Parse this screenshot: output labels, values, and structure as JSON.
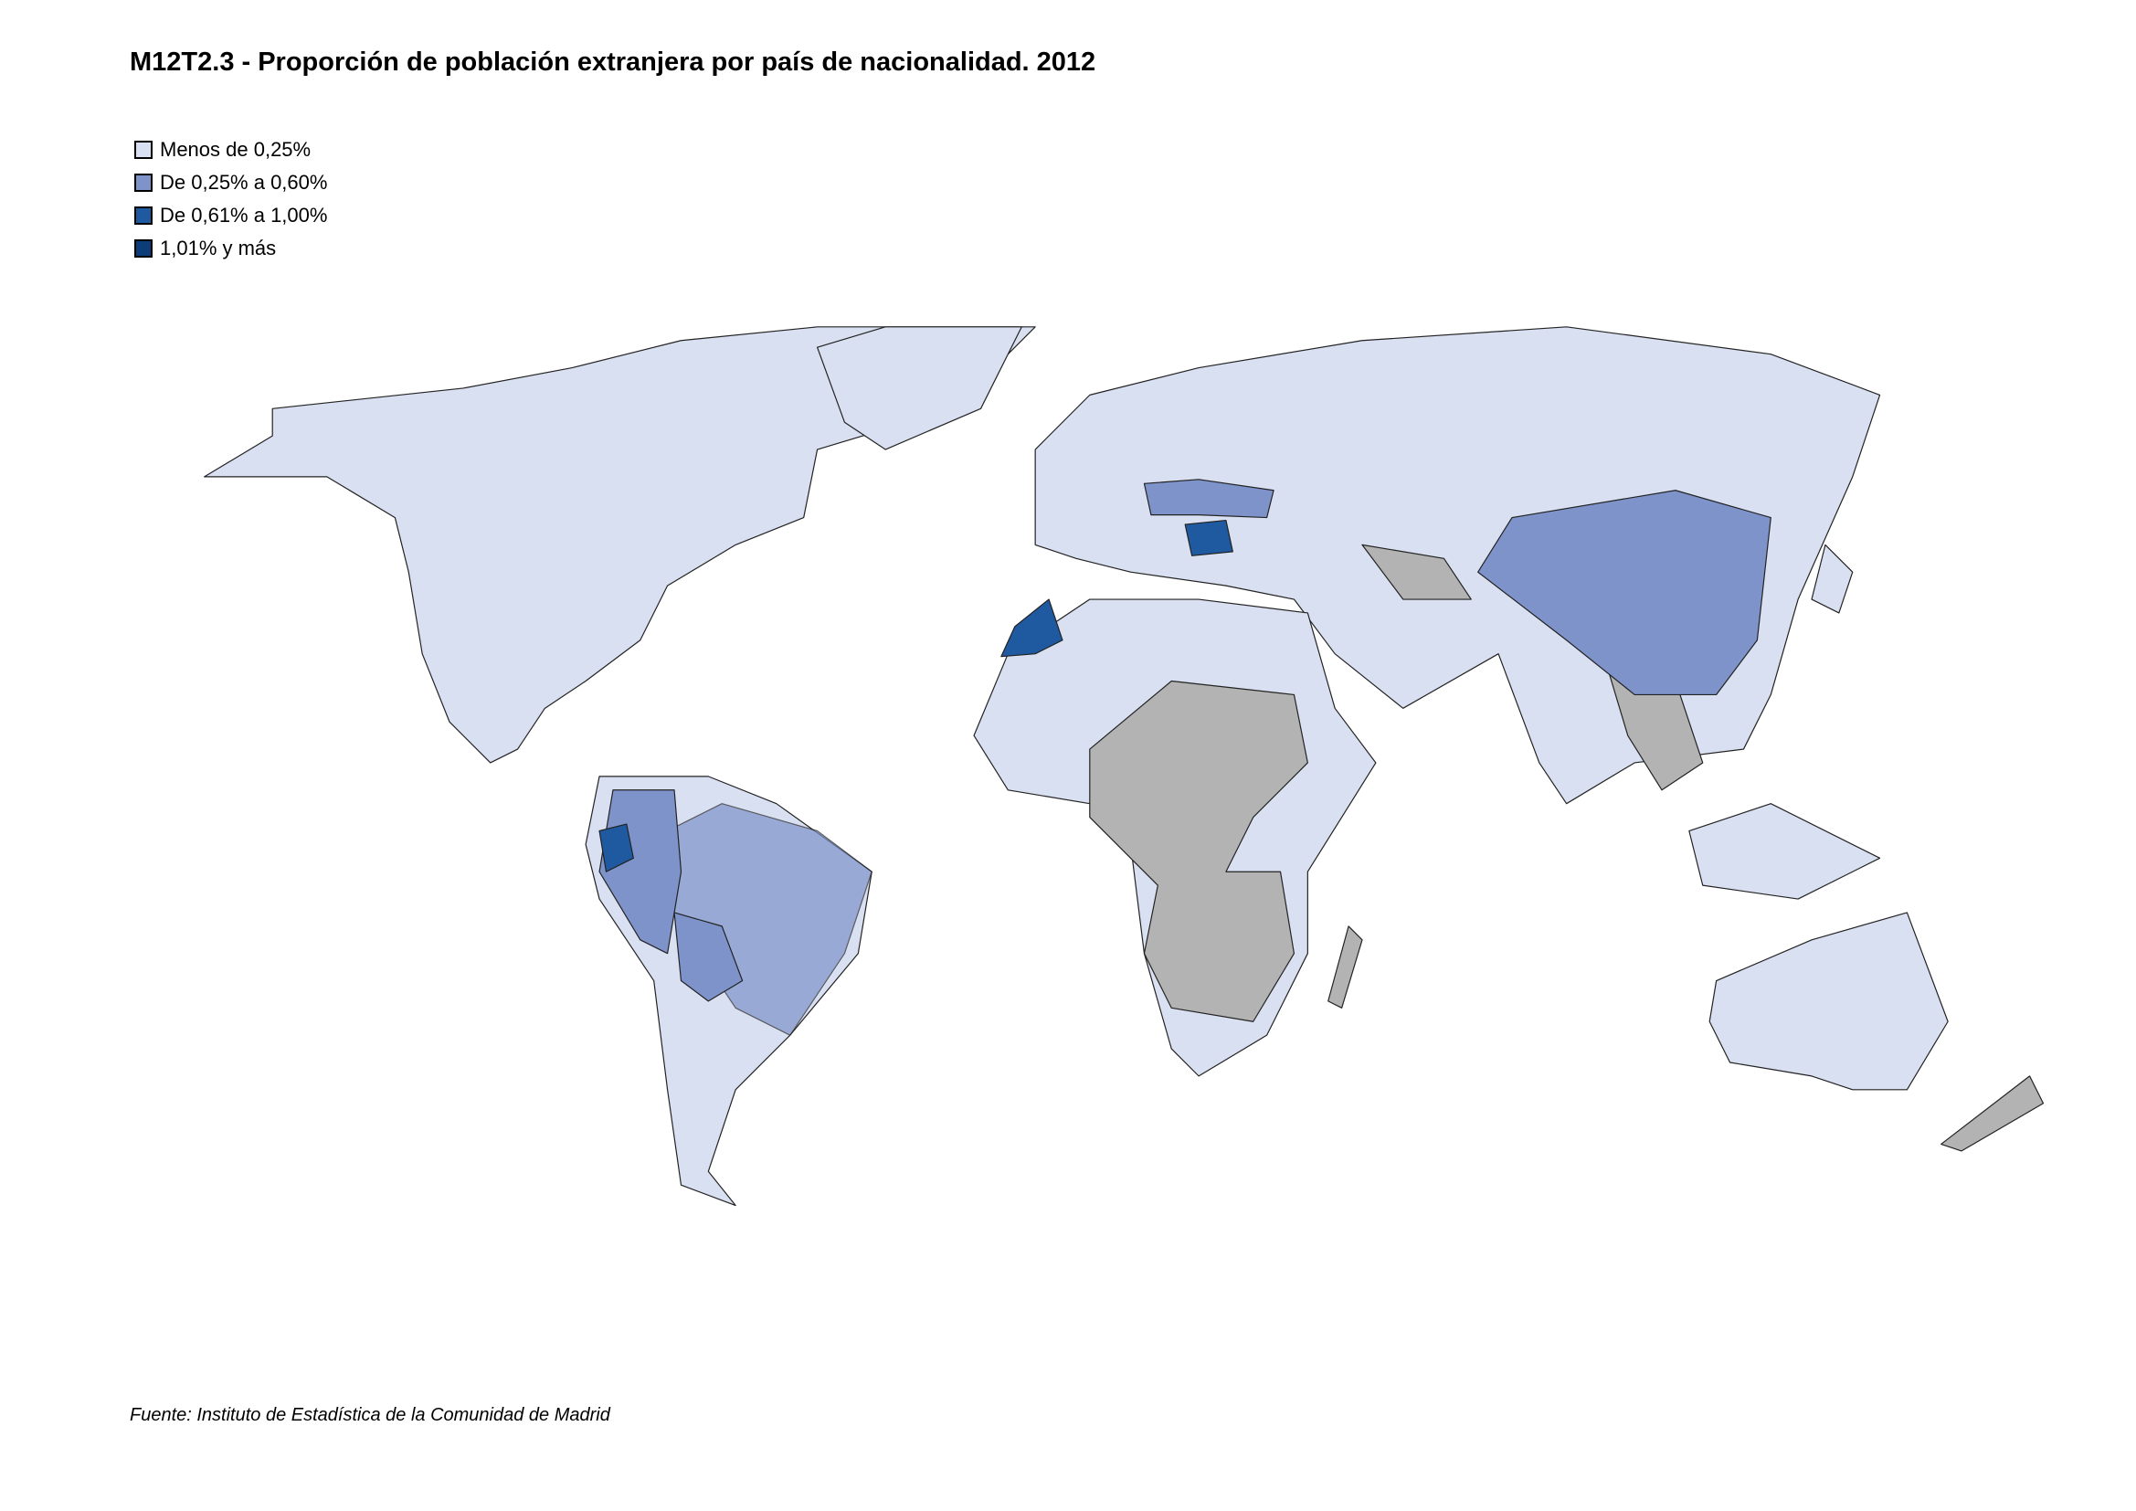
{
  "title": "M12T2.3 - Proporción de población extranjera por país de nacionalidad. 2012",
  "legend": [
    {
      "label": "Menos de 0,25%",
      "color": "#d9e0f1"
    },
    {
      "label": "De 0,25% a 0,60%",
      "color": "#7f93cb"
    },
    {
      "label": "De 0,61% a 1,00%",
      "color": "#1f5aa0"
    },
    {
      "label": "1,01% y más",
      "color": "#0d3d78"
    }
  ],
  "no_data_color": "#b3b3b3",
  "source": "Fuente: Instituto de Estadística de la Comunidad de Madrid"
}
